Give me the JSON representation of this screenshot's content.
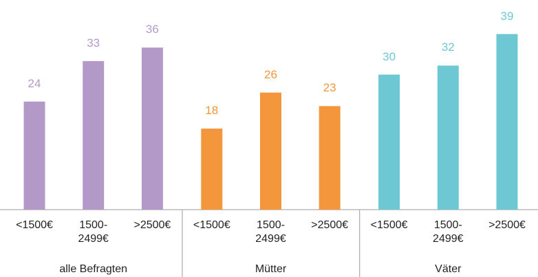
{
  "chart_data": {
    "type": "bar",
    "series": [
      {
        "name": "alle Befragten",
        "color": "#b399c8",
        "categories": [
          "<1500€",
          "1500-\n2499€",
          ">2500€"
        ],
        "values": [
          24,
          33,
          36
        ]
      },
      {
        "name": "Mütter",
        "color": "#f3963c",
        "categories": [
          "<1500€",
          "1500-\n2499€",
          ">2500€"
        ],
        "values": [
          18,
          26,
          23
        ]
      },
      {
        "name": "Väter",
        "color": "#6ec8d3",
        "categories": [
          "<1500€",
          "1500-\n2499€",
          ">2500€"
        ],
        "values": [
          30,
          32,
          39
        ]
      }
    ]
  }
}
